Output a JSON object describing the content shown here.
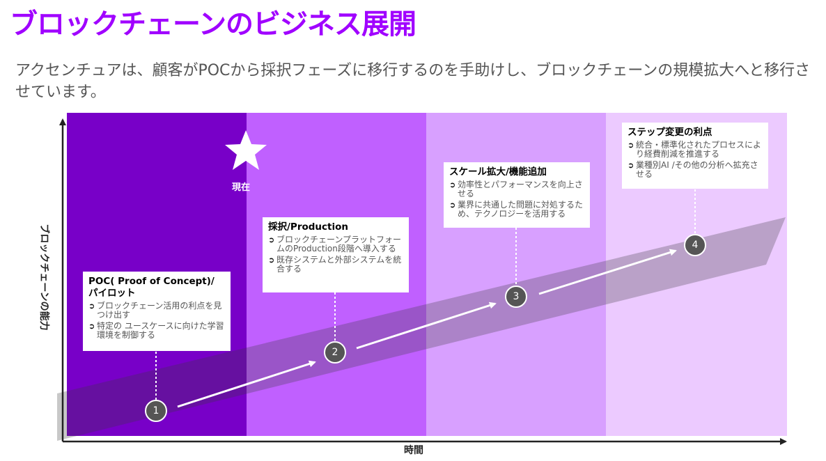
{
  "title": "ブロックチェーンのビジネス展開",
  "subtitle": "アクセンチュアは、顧客がPOCから採択フェーズに移行するのを手助けし、ブロックチェーンの規模拡大へと移行させています。",
  "y_axis_label": "ブロックチェーンの能力",
  "x_axis_label": "時間",
  "now_label": "現在",
  "colors": {
    "title": "#a000ff",
    "band1": "#7800c8",
    "band2": "#c060ff",
    "band3": "#d8a0ff",
    "band4": "#eccaff",
    "marker": "#555555"
  },
  "stages": [
    {
      "number": "1",
      "heading": "POC( Proof of Concept)/ パイロット",
      "bullets": [
        "ブロックチェーン活用の利点を見つけ出す",
        "特定の ユースケースに向けた学習環境を制御する"
      ]
    },
    {
      "number": "2",
      "heading": "採択/Production",
      "bullets": [
        "ブロックチェーンプラットフォームのProduction段階へ導入する",
        "既存システムと外部システムを統合する"
      ]
    },
    {
      "number": "3",
      "heading": "スケール拡大/機能追加",
      "bullets": [
        "効率性とパフォーマンスを向上させる",
        "業界に共通した問題に対処するため、テクノロジーを活用する"
      ]
    },
    {
      "number": "4",
      "heading": "ステップ変更の利点",
      "bullets": [
        "統合・標準化されたプロセスにより経費削減を推進する",
        "業種別AI /その他の分析へ拡充させる"
      ]
    }
  ],
  "bullet_glyph": "➲"
}
